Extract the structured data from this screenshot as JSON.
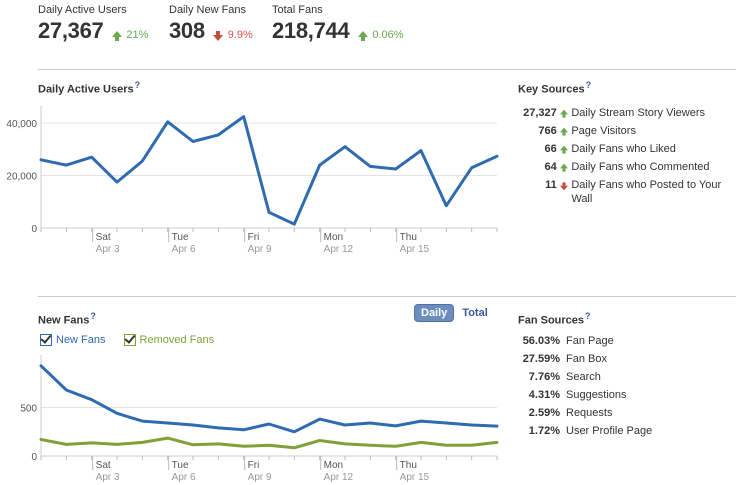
{
  "stats": [
    {
      "label": "Daily Active Users",
      "value": "27,367",
      "delta": "21%",
      "direction": "up"
    },
    {
      "label": "Daily New Fans",
      "value": "308",
      "delta": "9.9%",
      "direction": "down"
    },
    {
      "label": "Total Fans",
      "value": "218,744",
      "delta": "0.06%",
      "direction": "up"
    }
  ],
  "dau_section": {
    "title": "Daily Active Users",
    "help": "?"
  },
  "key_sources": {
    "title": "Key Sources",
    "help": "?",
    "items": [
      {
        "value": "27,327",
        "direction": "up",
        "label": "Daily Stream Story Viewers"
      },
      {
        "value": "766",
        "direction": "up",
        "label": "Page Visitors"
      },
      {
        "value": "66",
        "direction": "up",
        "label": "Daily Fans who Liked"
      },
      {
        "value": "64",
        "direction": "up",
        "label": "Daily Fans who Commented"
      },
      {
        "value": "11",
        "direction": "down",
        "label": "Daily Fans who Posted to Your Wall"
      }
    ]
  },
  "new_fans_section": {
    "title": "New Fans",
    "help": "?",
    "toggle_daily": "Daily",
    "toggle_total": "Total",
    "legend_new": "New Fans",
    "legend_removed": "Removed Fans"
  },
  "fan_sources": {
    "title": "Fan Sources",
    "help": "?",
    "items": [
      {
        "pct": "56.03%",
        "label": "Fan Page"
      },
      {
        "pct": "27.59%",
        "label": "Fan Box"
      },
      {
        "pct": "7.76%",
        "label": "Search"
      },
      {
        "pct": "4.31%",
        "label": "Suggestions"
      },
      {
        "pct": "2.59%",
        "label": "Requests"
      },
      {
        "pct": "1.72%",
        "label": "User Profile Page"
      }
    ]
  },
  "colors": {
    "line_blue": "#2f6bb0",
    "line_green": "#7ea238",
    "up": "#6aa84f",
    "down": "#c94a3a"
  },
  "chart_data": [
    {
      "type": "line",
      "ylim": [
        0,
        45000
      ],
      "yticks": [
        "40,000",
        "20,000",
        "0"
      ],
      "ytick_values": [
        40000,
        20000,
        0
      ],
      "x_ticks": [
        {
          "day": "Sat",
          "date": "Apr 3",
          "index": 2
        },
        {
          "day": "Tue",
          "date": "Apr 6",
          "index": 5
        },
        {
          "day": "Fri",
          "date": "Apr 9",
          "index": 8
        },
        {
          "day": "Mon",
          "date": "Apr 12",
          "index": 11
        },
        {
          "day": "Thu",
          "date": "Apr 15",
          "index": 14
        }
      ],
      "series": [
        {
          "values": [
            26000,
            24000,
            27000,
            17500,
            25500,
            40500,
            33000,
            35500,
            42500,
            6000,
            1500,
            24000,
            31000,
            23500,
            22500,
            29500,
            8500,
            23000,
            27367
          ]
        }
      ]
    },
    {
      "type": "line",
      "ylim": [
        0,
        1000
      ],
      "yticks": [
        "500",
        "0"
      ],
      "ytick_values": [
        500,
        0
      ],
      "x_ticks": [
        {
          "day": "Sat",
          "date": "Apr 3",
          "index": 2
        },
        {
          "day": "Tue",
          "date": "Apr 6",
          "index": 5
        },
        {
          "day": "Fri",
          "date": "Apr 9",
          "index": 8
        },
        {
          "day": "Mon",
          "date": "Apr 12",
          "index": 11
        },
        {
          "day": "Thu",
          "date": "Apr 15",
          "index": 14
        }
      ],
      "series": [
        {
          "name": "New Fans",
          "values": [
            930,
            680,
            580,
            440,
            360,
            340,
            320,
            290,
            270,
            330,
            250,
            380,
            320,
            340,
            310,
            360,
            340,
            320,
            308
          ]
        },
        {
          "name": "Removed Fans",
          "values": [
            170,
            120,
            135,
            120,
            140,
            185,
            115,
            125,
            100,
            110,
            85,
            160,
            125,
            110,
            100,
            140,
            110,
            110,
            140
          ]
        }
      ]
    }
  ]
}
